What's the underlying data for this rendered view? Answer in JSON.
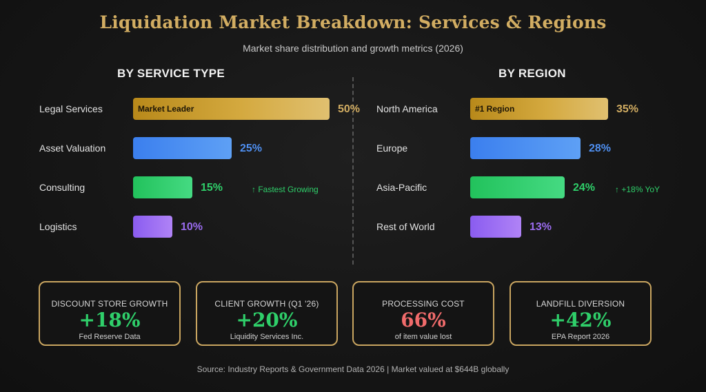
{
  "header": {
    "title": "Liquidation Market Breakdown: Services & Regions",
    "subtitle": "Market share distribution and growth metrics (2026)"
  },
  "colors": {
    "gold": "#d2ad62",
    "blue": "#4f8ff0",
    "green": "#2fcf6a",
    "purple": "#9b6cf0",
    "red": "#f06b6b"
  },
  "chart_data": [
    {
      "type": "bar",
      "orientation": "horizontal",
      "title": "BY SERVICE TYPE",
      "unit": "%",
      "categories": [
        "Legal Services",
        "Asset Valuation",
        "Consulting",
        "Logistics"
      ],
      "values": [
        50,
        25,
        15,
        10
      ],
      "value_labels": [
        "50%",
        "25%",
        "15%",
        "10%"
      ],
      "bar_colors": [
        "gold",
        "blue",
        "green",
        "purple"
      ],
      "inner_labels": [
        "Market Leader",
        "",
        "",
        ""
      ],
      "annotations": [
        "",
        "",
        "↑ Fastest Growing",
        ""
      ],
      "xlim": [
        0,
        50
      ]
    },
    {
      "type": "bar",
      "orientation": "horizontal",
      "title": "BY REGION",
      "unit": "%",
      "categories": [
        "North America",
        "Europe",
        "Asia-Pacific",
        "Rest of World"
      ],
      "values": [
        35,
        28,
        24,
        13
      ],
      "value_labels": [
        "35%",
        "28%",
        "24%",
        "13%"
      ],
      "bar_colors": [
        "gold",
        "blue",
        "green",
        "purple"
      ],
      "inner_labels": [
        "#1 Region",
        "",
        "",
        ""
      ],
      "annotations": [
        "",
        "",
        "↑ +18% YoY",
        ""
      ],
      "xlim": [
        0,
        35
      ]
    }
  ],
  "metrics": [
    {
      "label": "DISCOUNT STORE GROWTH",
      "value": "+18%",
      "sub": "Fed Reserve Data",
      "color": "green"
    },
    {
      "label": "CLIENT GROWTH (Q1 '26)",
      "value": "+20%",
      "sub": "Liquidity Services Inc.",
      "color": "green"
    },
    {
      "label": "PROCESSING COST",
      "value": "66%",
      "sub": "of item value lost",
      "color": "red"
    },
    {
      "label": "LANDFILL DIVERSION",
      "value": "+42%",
      "sub": "EPA Report 2026",
      "color": "green"
    }
  ],
  "footer": "Source: Industry Reports & Government Data 2026 | Market valued at $644B globally"
}
